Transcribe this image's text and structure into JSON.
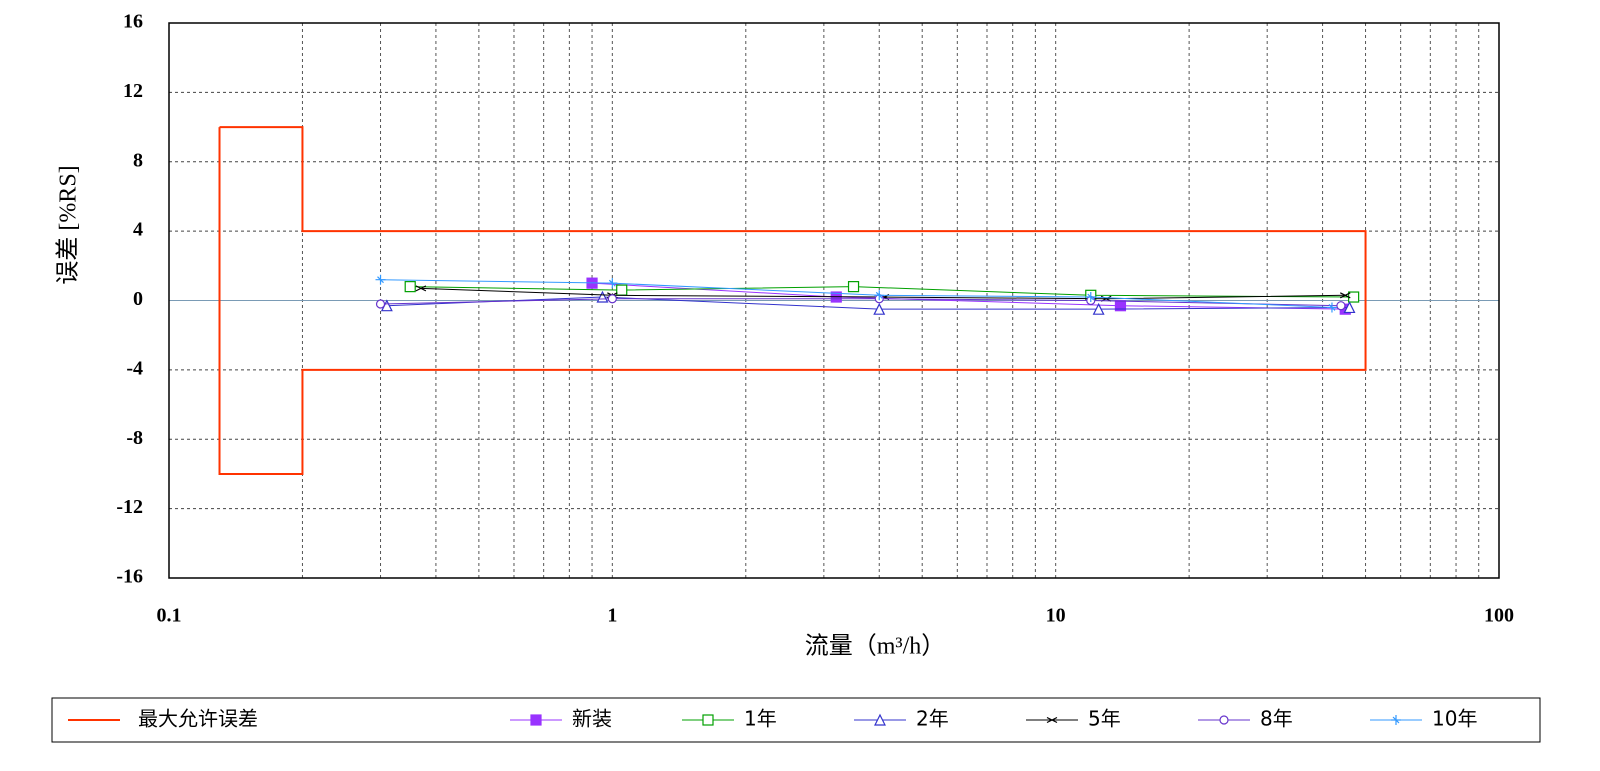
{
  "chart_data": {
    "type": "line",
    "xlabel": "流量（m³/h）",
    "ylabel": "误差 [%RS]",
    "xscale": "log",
    "xlim": [
      0.1,
      100
    ],
    "xticks": [
      0.1,
      1,
      10,
      100
    ],
    "xminorticks": [
      0.2,
      0.3,
      0.4,
      0.5,
      0.6,
      0.7,
      0.8,
      0.9,
      2,
      3,
      4,
      5,
      6,
      7,
      8,
      9,
      20,
      30,
      40,
      50,
      60,
      70,
      80,
      90
    ],
    "ylim": [
      -16,
      16
    ],
    "yticks": [
      -16,
      -12,
      -8,
      -4,
      0,
      4,
      8,
      12,
      16
    ],
    "grid": true,
    "legend": "bottom",
    "series": [
      {
        "name": "最大允许误差",
        "color": "#ff3300",
        "marker": "none",
        "x": [
          0.13,
          0.2,
          0.2,
          50,
          50,
          0.2,
          0.2,
          0.13,
          0.13
        ],
        "values": [
          10,
          10,
          4,
          4,
          -4,
          -4,
          -10,
          -10,
          10
        ]
      },
      {
        "name": "新装",
        "color": "#9933ff",
        "marker": "filled-square",
        "x": [
          0.9,
          3.2,
          14,
          45
        ],
        "values": [
          1.0,
          0.2,
          -0.3,
          -0.5
        ]
      },
      {
        "name": "1年",
        "color": "#00a000",
        "marker": "square",
        "x": [
          0.35,
          1.05,
          3.5,
          12,
          47
        ],
        "values": [
          0.8,
          0.6,
          0.8,
          0.3,
          0.2
        ]
      },
      {
        "name": "2年",
        "color": "#3333cc",
        "marker": "triangle",
        "x": [
          0.31,
          0.95,
          4.0,
          12.5,
          46
        ],
        "values": [
          -0.3,
          0.2,
          -0.5,
          -0.5,
          -0.4
        ]
      },
      {
        "name": "5年",
        "color": "#000000",
        "marker": "x",
        "x": [
          0.37,
          1.0,
          4.1,
          13,
          45
        ],
        "values": [
          0.7,
          0.3,
          0.2,
          0.1,
          0.3
        ]
      },
      {
        "name": "8年",
        "color": "#6633cc",
        "marker": "circle",
        "x": [
          0.3,
          1.0,
          4.0,
          12,
          44
        ],
        "values": [
          -0.2,
          0.1,
          0.1,
          0.0,
          -0.3
        ]
      },
      {
        "name": "10年",
        "color": "#3399ff",
        "marker": "star",
        "x": [
          0.3,
          1.0,
          4.0,
          12,
          42
        ],
        "values": [
          1.2,
          1.0,
          0.3,
          0.2,
          -0.4
        ]
      }
    ]
  }
}
